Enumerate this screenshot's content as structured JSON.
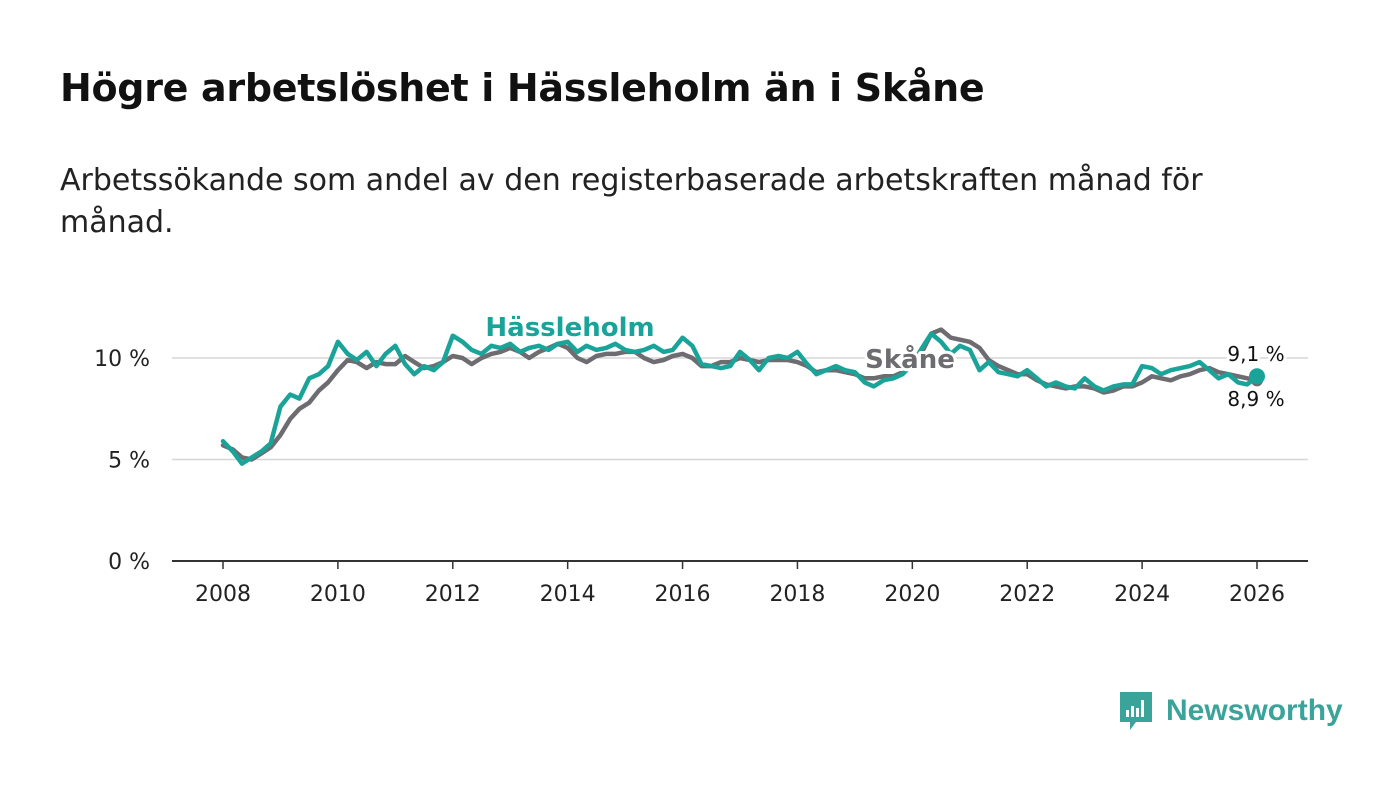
{
  "header": {
    "title": "Högre arbetslöshet i Hässleholm än i Skåne",
    "subtitle": "Arbetssökande som andel av den registerbaserade arbetskraften månad för månad."
  },
  "brand": {
    "name": "Newsworthy",
    "logo_icon": "bar-chart-speech-bubble-icon"
  },
  "colors": {
    "hassleholm": "#1aa399",
    "skane": "#6d6c70",
    "grid": "#d6d6d6",
    "axis": "#333333",
    "text": "#222222"
  },
  "chart_data": {
    "type": "line",
    "title": "Högre arbetslöshet i Hässleholm än i Skåne",
    "subtitle": "Arbetssökande som andel av den registerbaserade arbetskraften månad för månad.",
    "xlabel": "",
    "ylabel": "",
    "ylim": [
      0,
      12
    ],
    "xlim": [
      2007.75,
      2026.85
    ],
    "yticks": [
      0,
      5,
      10
    ],
    "ytick_labels": [
      "0 %",
      "5 %",
      "10 %"
    ],
    "xticks": [
      2008,
      2010,
      2012,
      2014,
      2016,
      2018,
      2020,
      2022,
      2024,
      2026
    ],
    "xtick_labels": [
      "2008",
      "2010",
      "2012",
      "2014",
      "2016",
      "2018",
      "2020",
      "2022",
      "2024",
      "2026"
    ],
    "grid": true,
    "legend": "inline labels",
    "series": [
      {
        "name": "Skåne",
        "label": "Skåne",
        "end_label": "8,9 %",
        "end_value": 8.9,
        "x": [
          2008.0,
          2008.17,
          2008.33,
          2008.5,
          2008.67,
          2008.83,
          2009.0,
          2009.17,
          2009.33,
          2009.5,
          2009.67,
          2009.83,
          2010.0,
          2010.17,
          2010.33,
          2010.5,
          2010.67,
          2010.83,
          2011.0,
          2011.17,
          2011.33,
          2011.5,
          2011.67,
          2011.83,
          2012.0,
          2012.17,
          2012.33,
          2012.5,
          2012.67,
          2012.83,
          2013.0,
          2013.17,
          2013.33,
          2013.5,
          2013.67,
          2013.83,
          2014.0,
          2014.17,
          2014.33,
          2014.5,
          2014.67,
          2014.83,
          2015.0,
          2015.17,
          2015.33,
          2015.5,
          2015.67,
          2015.83,
          2016.0,
          2016.17,
          2016.33,
          2016.5,
          2016.67,
          2016.83,
          2017.0,
          2017.17,
          2017.33,
          2017.5,
          2017.67,
          2017.83,
          2018.0,
          2018.17,
          2018.33,
          2018.5,
          2018.67,
          2018.83,
          2019.0,
          2019.17,
          2019.33,
          2019.5,
          2019.67,
          2019.83,
          2020.0,
          2020.17,
          2020.33,
          2020.5,
          2020.67,
          2020.83,
          2021.0,
          2021.17,
          2021.33,
          2021.5,
          2021.67,
          2021.83,
          2022.0,
          2022.17,
          2022.33,
          2022.5,
          2022.67,
          2022.83,
          2023.0,
          2023.17,
          2023.33,
          2023.5,
          2023.67,
          2023.83,
          2024.0,
          2024.17,
          2024.33,
          2024.5,
          2024.67,
          2024.83,
          2025.0,
          2025.17,
          2025.33,
          2025.5,
          2025.67,
          2025.83,
          2026.0
        ],
        "values": [
          5.7,
          5.5,
          5.1,
          5.0,
          5.3,
          5.6,
          6.2,
          7.0,
          7.5,
          7.8,
          8.4,
          8.8,
          9.4,
          9.9,
          9.8,
          9.5,
          9.8,
          9.7,
          9.7,
          10.1,
          9.8,
          9.5,
          9.6,
          9.8,
          10.1,
          10.0,
          9.7,
          10.0,
          10.2,
          10.3,
          10.5,
          10.3,
          10.0,
          10.3,
          10.5,
          10.7,
          10.5,
          10.0,
          9.8,
          10.1,
          10.2,
          10.2,
          10.3,
          10.3,
          10.0,
          9.8,
          9.9,
          10.1,
          10.2,
          10.0,
          9.6,
          9.6,
          9.8,
          9.8,
          10.0,
          9.9,
          9.8,
          9.9,
          9.9,
          9.9,
          9.8,
          9.6,
          9.3,
          9.4,
          9.4,
          9.3,
          9.2,
          9.0,
          9.0,
          9.1,
          9.1,
          9.3,
          9.6,
          10.3,
          11.2,
          11.4,
          11.0,
          10.9,
          10.8,
          10.5,
          9.9,
          9.6,
          9.4,
          9.2,
          9.2,
          8.9,
          8.7,
          8.6,
          8.5,
          8.6,
          8.6,
          8.5,
          8.3,
          8.4,
          8.6,
          8.6,
          8.8,
          9.1,
          9.0,
          8.9,
          9.1,
          9.2,
          9.4,
          9.5,
          9.3,
          9.2,
          9.1,
          9.0,
          8.9
        ]
      },
      {
        "name": "Hässleholm",
        "label": "Hässleholm",
        "end_label": "9,1 %",
        "end_value": 9.1,
        "x": [
          2008.0,
          2008.17,
          2008.33,
          2008.5,
          2008.67,
          2008.83,
          2009.0,
          2009.17,
          2009.33,
          2009.5,
          2009.67,
          2009.83,
          2010.0,
          2010.17,
          2010.33,
          2010.5,
          2010.67,
          2010.83,
          2011.0,
          2011.17,
          2011.33,
          2011.5,
          2011.67,
          2011.83,
          2012.0,
          2012.17,
          2012.33,
          2012.5,
          2012.67,
          2012.83,
          2013.0,
          2013.17,
          2013.33,
          2013.5,
          2013.67,
          2013.83,
          2014.0,
          2014.17,
          2014.33,
          2014.5,
          2014.67,
          2014.83,
          2015.0,
          2015.17,
          2015.33,
          2015.5,
          2015.67,
          2015.83,
          2016.0,
          2016.17,
          2016.33,
          2016.5,
          2016.67,
          2016.83,
          2017.0,
          2017.17,
          2017.33,
          2017.5,
          2017.67,
          2017.83,
          2018.0,
          2018.17,
          2018.33,
          2018.5,
          2018.67,
          2018.83,
          2019.0,
          2019.17,
          2019.33,
          2019.5,
          2019.67,
          2019.83,
          2020.0,
          2020.17,
          2020.33,
          2020.5,
          2020.67,
          2020.83,
          2021.0,
          2021.17,
          2021.33,
          2021.5,
          2021.67,
          2021.83,
          2022.0,
          2022.17,
          2022.33,
          2022.5,
          2022.67,
          2022.83,
          2023.0,
          2023.17,
          2023.33,
          2023.5,
          2023.67,
          2023.83,
          2024.0,
          2024.17,
          2024.33,
          2024.5,
          2024.67,
          2024.83,
          2025.0,
          2025.17,
          2025.33,
          2025.5,
          2025.67,
          2025.83,
          2026.0
        ],
        "values": [
          5.9,
          5.4,
          4.8,
          5.1,
          5.4,
          5.8,
          7.6,
          8.2,
          8.0,
          9.0,
          9.2,
          9.6,
          10.8,
          10.2,
          9.9,
          10.3,
          9.6,
          10.2,
          10.6,
          9.7,
          9.2,
          9.6,
          9.4,
          9.8,
          11.1,
          10.8,
          10.4,
          10.2,
          10.6,
          10.5,
          10.7,
          10.3,
          10.5,
          10.6,
          10.4,
          10.7,
          10.8,
          10.3,
          10.6,
          10.4,
          10.5,
          10.7,
          10.4,
          10.3,
          10.4,
          10.6,
          10.3,
          10.4,
          11.0,
          10.6,
          9.7,
          9.6,
          9.5,
          9.6,
          10.3,
          9.9,
          9.4,
          10.0,
          10.1,
          10.0,
          10.3,
          9.7,
          9.2,
          9.4,
          9.6,
          9.4,
          9.3,
          8.8,
          8.6,
          8.9,
          9.0,
          9.2,
          9.7,
          10.5,
          11.2,
          10.8,
          10.2,
          10.6,
          10.4,
          9.4,
          9.8,
          9.3,
          9.2,
          9.1,
          9.4,
          9.0,
          8.6,
          8.8,
          8.6,
          8.5,
          9.0,
          8.6,
          8.4,
          8.6,
          8.7,
          8.7,
          9.6,
          9.5,
          9.2,
          9.4,
          9.5,
          9.6,
          9.8,
          9.4,
          9.0,
          9.2,
          8.8,
          8.7,
          9.1
        ]
      }
    ]
  }
}
